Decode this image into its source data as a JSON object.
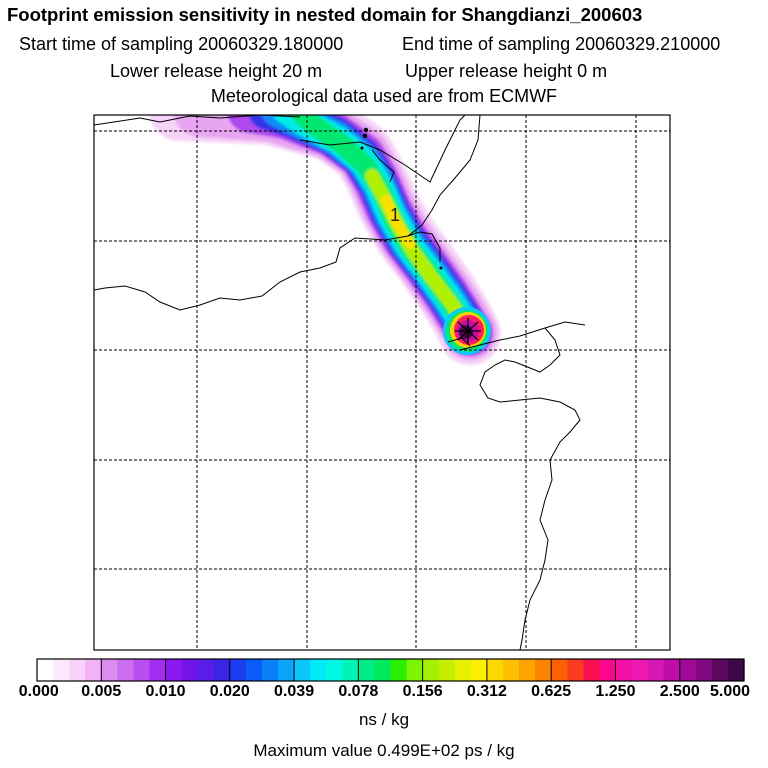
{
  "header": {
    "title": "Footprint emission sensitivity in nested domain for Shangdianzi_200603",
    "start_label": "Start time of sampling 20060329.180000",
    "end_label": "End time of sampling 20060329.210000",
    "lower_label": "Lower release height   20 m",
    "upper_label": "Upper release height    0 m",
    "met_label": "Meteorological data used are from ECMWF"
  },
  "map": {
    "contour_label": "1"
  },
  "colorbar": {
    "tick_labels": [
      "0.000",
      "0.005",
      "0.010",
      "0.020",
      "0.039",
      "0.078",
      "0.156",
      "0.312",
      "0.625",
      "1.250",
      "2.500",
      "5.000"
    ],
    "colors": [
      "#ffffff",
      "#fce9fc",
      "#f8d2fa",
      "#f2b3f6",
      "#dc8cf0",
      "#cc6cee",
      "#b84ef0",
      "#a22cf2",
      "#8c18f0",
      "#7214e8",
      "#5a1ce8",
      "#3a24e6",
      "#1c3cf0",
      "#0a5cf8",
      "#0a80f8",
      "#0aa4fa",
      "#0ac8fc",
      "#00eaf8",
      "#00f8e0",
      "#00f4b4",
      "#00ec88",
      "#00e85c",
      "#2cf000",
      "#7cf600",
      "#a4f000",
      "#c6ee00",
      "#e8f000",
      "#fcf000",
      "#fcd800",
      "#fcc000",
      "#fca400",
      "#fc8400",
      "#fc6000",
      "#fc3c20",
      "#fc1050",
      "#fc0890",
      "#f410a4",
      "#ec18b0",
      "#d818b4",
      "#c00ca8",
      "#a00896",
      "#800880",
      "#5c0860",
      "#3c0848"
    ],
    "units": "ns / kg",
    "max_label": "Maximum value  0.499E+02 ps / kg"
  }
}
